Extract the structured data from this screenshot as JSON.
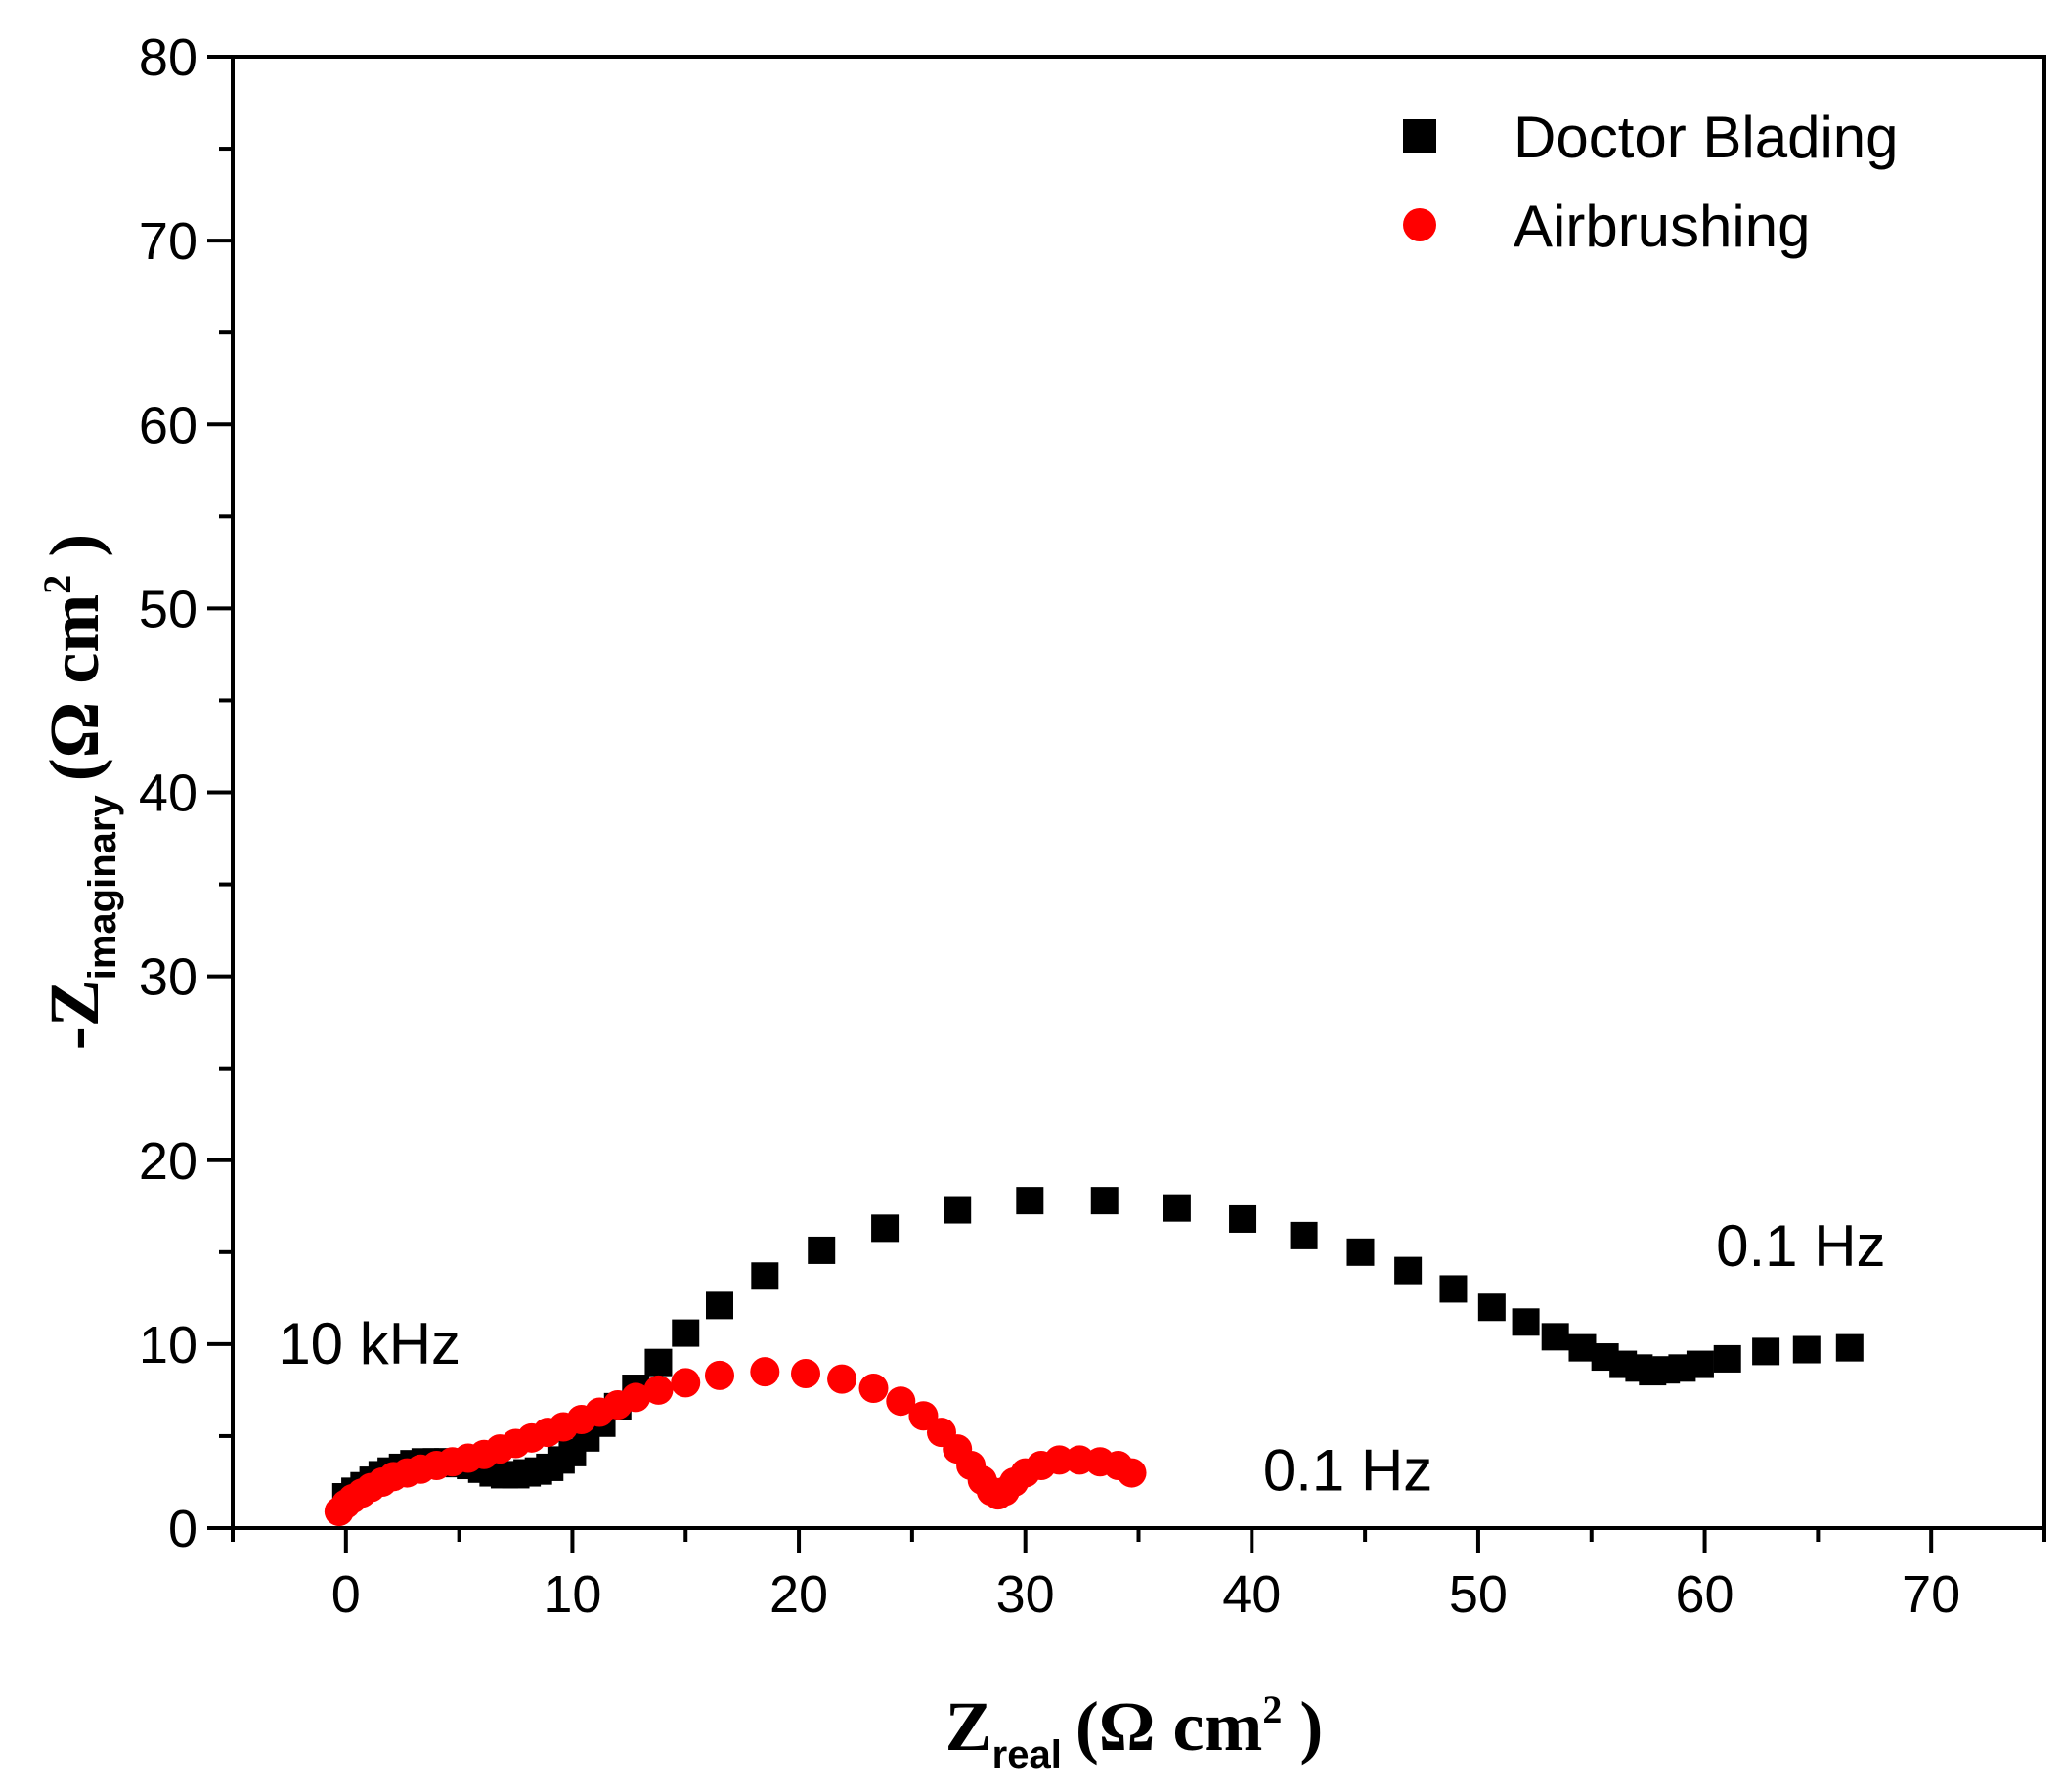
{
  "chart_data": {
    "type": "scatter",
    "title": "",
    "xlabel": {
      "main": "Z",
      "sub": "real",
      "unit_pre": "(Ω cm",
      "sup": "2",
      "unit_post": " )"
    },
    "ylabel": {
      "main": "-Z",
      "sub": "imaginary",
      "unit_pre": "(Ω cm",
      "sup": "2",
      "unit_post": " )"
    },
    "xlim": [
      -5,
      75
    ],
    "ylim": [
      0,
      80
    ],
    "xticks": [
      0,
      10,
      20,
      30,
      40,
      50,
      60,
      70
    ],
    "yticks": [
      0,
      10,
      20,
      30,
      40,
      50,
      60,
      70,
      80
    ],
    "xtick_labels": [
      "0",
      "10",
      "20",
      "30",
      "40",
      "50",
      "60",
      "70"
    ],
    "ytick_labels": [
      "0",
      "10",
      "20",
      "30",
      "40",
      "50",
      "60",
      "70",
      "80"
    ],
    "grid": false,
    "legend_position": "top-right",
    "series": [
      {
        "name": "Doctor Blading",
        "marker": "square",
        "color": "#000000",
        "x": [
          0.0,
          0.4,
          0.8,
          1.2,
          1.6,
          2.0,
          2.5,
          3.0,
          3.5,
          4.0,
          4.5,
          5.0,
          5.5,
          6.0,
          6.5,
          7.0,
          7.5,
          8.0,
          8.5,
          9.0,
          9.5,
          10.0,
          10.6,
          11.3,
          12.0,
          12.8,
          13.8,
          15.0,
          16.5,
          18.5,
          21.0,
          23.8,
          27.0,
          30.2,
          33.5,
          36.7,
          39.6,
          42.3,
          44.8,
          46.9,
          48.9,
          50.6,
          52.1,
          53.4,
          54.6,
          55.6,
          56.4,
          57.1,
          57.7,
          58.3,
          59.0,
          59.8,
          61.0,
          62.7,
          64.5,
          66.4
        ],
        "y": [
          1.7,
          2.0,
          2.3,
          2.6,
          2.9,
          3.1,
          3.3,
          3.5,
          3.6,
          3.6,
          3.6,
          3.5,
          3.4,
          3.2,
          3.0,
          2.9,
          2.9,
          3.0,
          3.1,
          3.3,
          3.7,
          4.1,
          4.9,
          5.7,
          6.6,
          7.6,
          9.0,
          10.6,
          12.1,
          13.7,
          15.1,
          16.3,
          17.3,
          17.8,
          17.8,
          17.4,
          16.8,
          15.9,
          15.0,
          14.0,
          13.0,
          12.0,
          11.2,
          10.4,
          9.8,
          9.3,
          8.9,
          8.7,
          8.5,
          8.6,
          8.7,
          8.9,
          9.2,
          9.6,
          9.7,
          9.8
        ]
      },
      {
        "name": "Airbrushing",
        "marker": "circle",
        "color": "#ff0000",
        "x": [
          -0.3,
          0.0,
          0.3,
          0.7,
          1.1,
          1.6,
          2.1,
          2.7,
          3.3,
          4.0,
          4.7,
          5.4,
          6.1,
          6.8,
          7.5,
          8.2,
          8.9,
          9.6,
          10.4,
          11.2,
          12.0,
          12.8,
          13.8,
          15.0,
          16.5,
          18.5,
          20.3,
          21.9,
          23.3,
          24.5,
          25.5,
          26.3,
          27.0,
          27.6,
          28.1,
          28.5,
          28.8,
          29.1,
          29.5,
          30.0,
          30.7,
          31.5,
          32.4,
          33.3,
          34.1,
          34.7
        ],
        "y": [
          0.9,
          1.3,
          1.6,
          1.9,
          2.2,
          2.5,
          2.8,
          3.0,
          3.2,
          3.4,
          3.6,
          3.8,
          4.0,
          4.3,
          4.6,
          4.9,
          5.2,
          5.5,
          5.9,
          6.3,
          6.7,
          7.1,
          7.5,
          7.9,
          8.3,
          8.5,
          8.4,
          8.1,
          7.6,
          6.9,
          6.1,
          5.2,
          4.3,
          3.4,
          2.6,
          2.0,
          1.8,
          2.0,
          2.5,
          3.0,
          3.4,
          3.7,
          3.7,
          3.6,
          3.4,
          3.0
        ]
      }
    ],
    "annotations": [
      {
        "text": "10 kHz",
        "x": -3.0,
        "y": 10.0
      },
      {
        "text": "0.1 Hz",
        "x": 40.5,
        "y": 3.1
      },
      {
        "text": "0.1 Hz",
        "x": 60.5,
        "y": 15.3
      }
    ]
  }
}
